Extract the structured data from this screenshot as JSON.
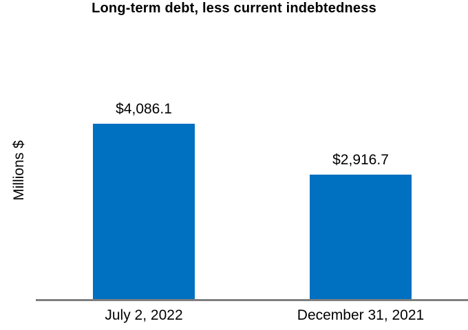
{
  "chart_data": {
    "type": "bar",
    "title": "Long-term debt, less current indebtedness",
    "xlabel": "",
    "ylabel": "Millions $",
    "categories": [
      "July 2, 2022",
      "December 31, 2021"
    ],
    "values": [
      4086.1,
      2916.7
    ],
    "data_labels": [
      "$4,086.1",
      "$2,916.7"
    ],
    "ylim": [
      0,
      4300
    ],
    "grid": false,
    "legend": false,
    "bar_color": "#0070C0",
    "axis_color": "#7F7F7F",
    "text_color": "#000000"
  }
}
